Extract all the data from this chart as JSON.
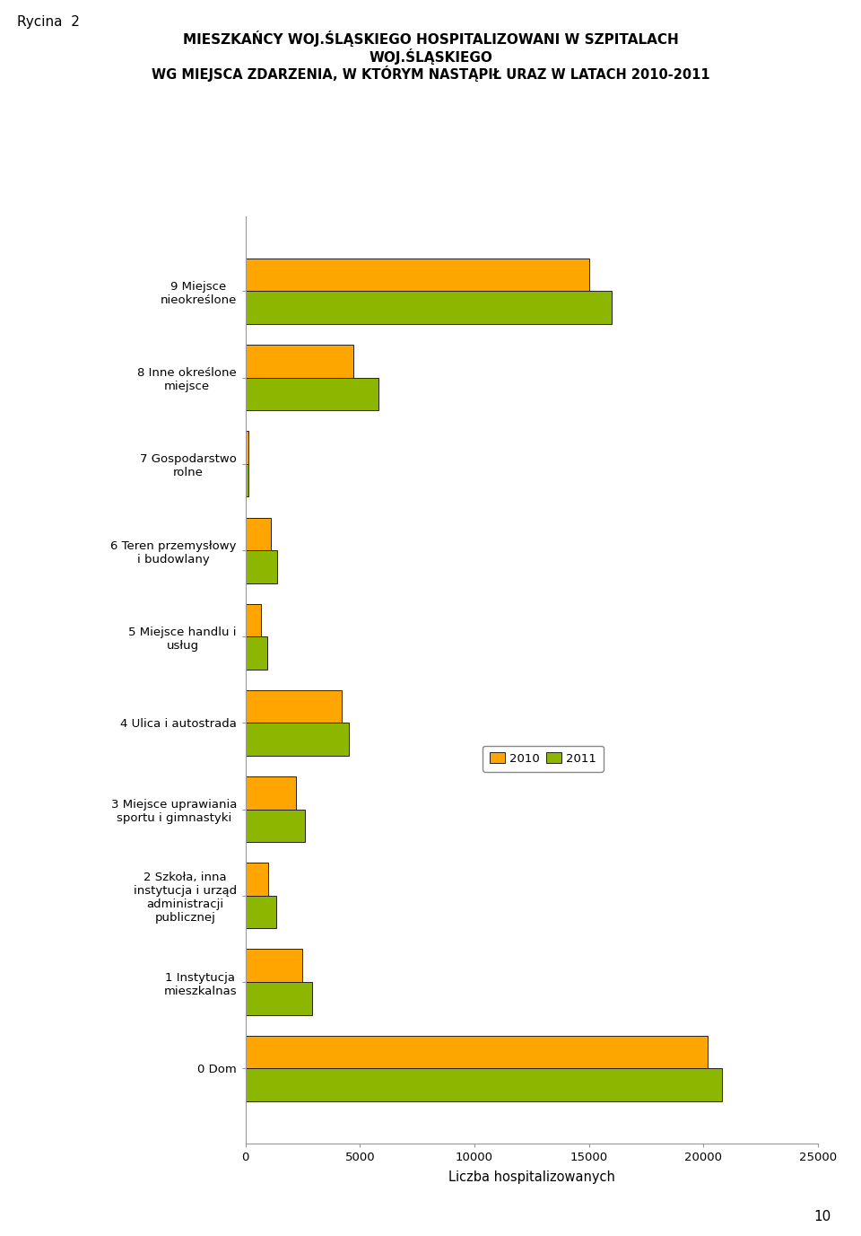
{
  "title_line1": "MIESZKAŃCY WOJ.ŚLĄSKIEGO HOSPITALIZOWANI W SZPITALACH",
  "title_line2": "WOJ.ŚLĄSKIEGO",
  "title_line3": "WG MIEJSCA ZDARZENIA, W KTÓRYM NASTĄPIŁ URAZ W LATACH 2010-2011",
  "xlabel": "Liczba hospitalizowanych",
  "page_label": "10",
  "figure_label": "Rycina  2",
  "categories": [
    "9 Miejsce\nnieokreślone",
    "8 Inne określone\nmiejsce",
    "7 Gospodarstwo\nrolne",
    "6 Teren przemysłowy\ni budowlany",
    "5 Miejsce handlu i\nusług",
    "4 Ulica i autostrada",
    "3 Miejsce uprawiania\nsportu i gimnastyki",
    "2 Szkoła, inna\ninstytucja i urząd\nadministracji\npublicznej",
    "1 Instytucja\nmieszkalnas",
    "0 Dom"
  ],
  "cat_labels": [
    "9 Miejsce\nnieokreślone",
    "8 Inne określone\nmiejsce",
    "7 Gospodarstwo\nrolne",
    "6 Teren przemysłowy\ni budowlany",
    "5 Miejsce handlu i\nusług",
    "4 Ulica i autostrada",
    "3 Miejsce uprawiania\nsportu i gimnastyki",
    "2 Szkoła, inna\ninstytucja i urząd\nadministracji\npublicznej",
    "1 Instytucja\nmieszkalnas",
    "0 Dom"
  ],
  "values_2011": [
    16000,
    5800,
    150,
    1400,
    950,
    4500,
    2600,
    1350,
    2900,
    20800
  ],
  "values_2010": [
    15000,
    4700,
    120,
    1100,
    700,
    4200,
    2200,
    1000,
    2500,
    20200
  ],
  "color_2010": "#FFA500",
  "color_2011": "#8DB600",
  "bar_edgecolor": "#222222",
  "xlim": [
    0,
    25000
  ],
  "xticks": [
    0,
    5000,
    10000,
    15000,
    20000,
    25000
  ],
  "legend_labels": [
    "2010",
    "2011"
  ],
  "bar_height": 0.38
}
